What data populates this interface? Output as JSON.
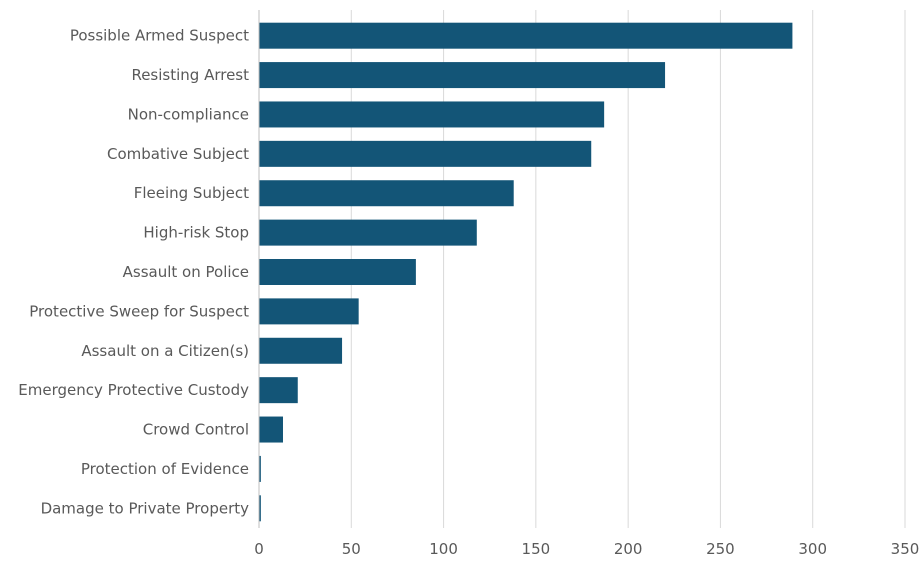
{
  "chart_data": {
    "type": "bar",
    "orientation": "horizontal",
    "categories": [
      "Possible Armed Suspect",
      "Resisting Arrest",
      "Non-compliance",
      "Combative Subject",
      "Fleeing Subject",
      "High-risk Stop",
      "Assault on Police",
      "Protective Sweep for Suspect",
      "Assault on a Citizen(s)",
      "Emergency Protective Custody",
      "Crowd Control",
      "Protection of Evidence",
      "Damage to Private Property"
    ],
    "values": [
      289,
      220,
      187,
      180,
      138,
      118,
      85,
      54,
      45,
      21,
      13,
      1,
      1
    ],
    "title": "",
    "xlabel": "",
    "ylabel": "",
    "xlim": [
      0,
      350
    ],
    "xticks": [
      "0",
      "50",
      "100",
      "150",
      "200",
      "250",
      "300",
      "350"
    ],
    "grid": "vertical",
    "legend": "none",
    "colors": {
      "bar": "#135577",
      "grid": "#d9d9d9",
      "axis": "#bfbfbf",
      "text": "#595959"
    }
  }
}
